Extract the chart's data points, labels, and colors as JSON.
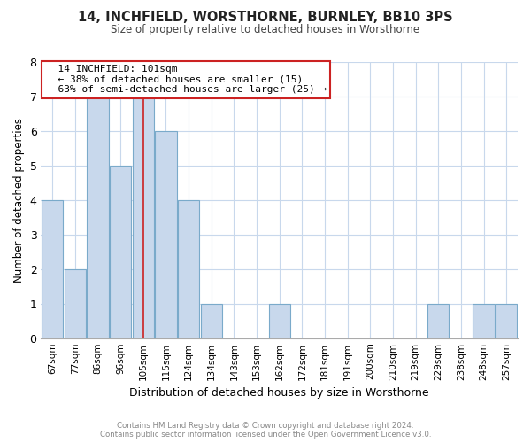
{
  "title": "14, INCHFIELD, WORSTHORNE, BURNLEY, BB10 3PS",
  "subtitle": "Size of property relative to detached houses in Worsthorne",
  "xlabel": "Distribution of detached houses by size in Worsthorne",
  "ylabel": "Number of detached properties",
  "footer_line1": "Contains HM Land Registry data © Crown copyright and database right 2024.",
  "footer_line2": "Contains public sector information licensed under the Open Government Licence v3.0.",
  "bins": [
    "67sqm",
    "77sqm",
    "86sqm",
    "96sqm",
    "105sqm",
    "115sqm",
    "124sqm",
    "134sqm",
    "143sqm",
    "153sqm",
    "162sqm",
    "172sqm",
    "181sqm",
    "191sqm",
    "200sqm",
    "210sqm",
    "219sqm",
    "229sqm",
    "238sqm",
    "248sqm",
    "257sqm"
  ],
  "values": [
    4,
    2,
    7,
    5,
    7,
    6,
    4,
    1,
    0,
    0,
    1,
    0,
    0,
    0,
    0,
    0,
    0,
    1,
    0,
    1,
    1
  ],
  "bar_color": "#c8d8ec",
  "bar_edge_color": "#7aaaca",
  "highlight_bin_index": 4,
  "highlight_line_color": "#cc2222",
  "annotation_title": "14 INCHFIELD: 101sqm",
  "annotation_line1": "← 38% of detached houses are smaller (15)",
  "annotation_line2": "63% of semi-detached houses are larger (25) →",
  "annotation_box_facecolor": "#ffffff",
  "annotation_box_edgecolor": "#cc2222",
  "ylim": [
    0,
    8
  ],
  "yticks": [
    0,
    1,
    2,
    3,
    4,
    5,
    6,
    7,
    8
  ],
  "grid_color": "#c8d8ec",
  "bg_color": "#ffffff",
  "title_color": "#222222",
  "subtitle_color": "#444444",
  "footer_color": "#888888"
}
